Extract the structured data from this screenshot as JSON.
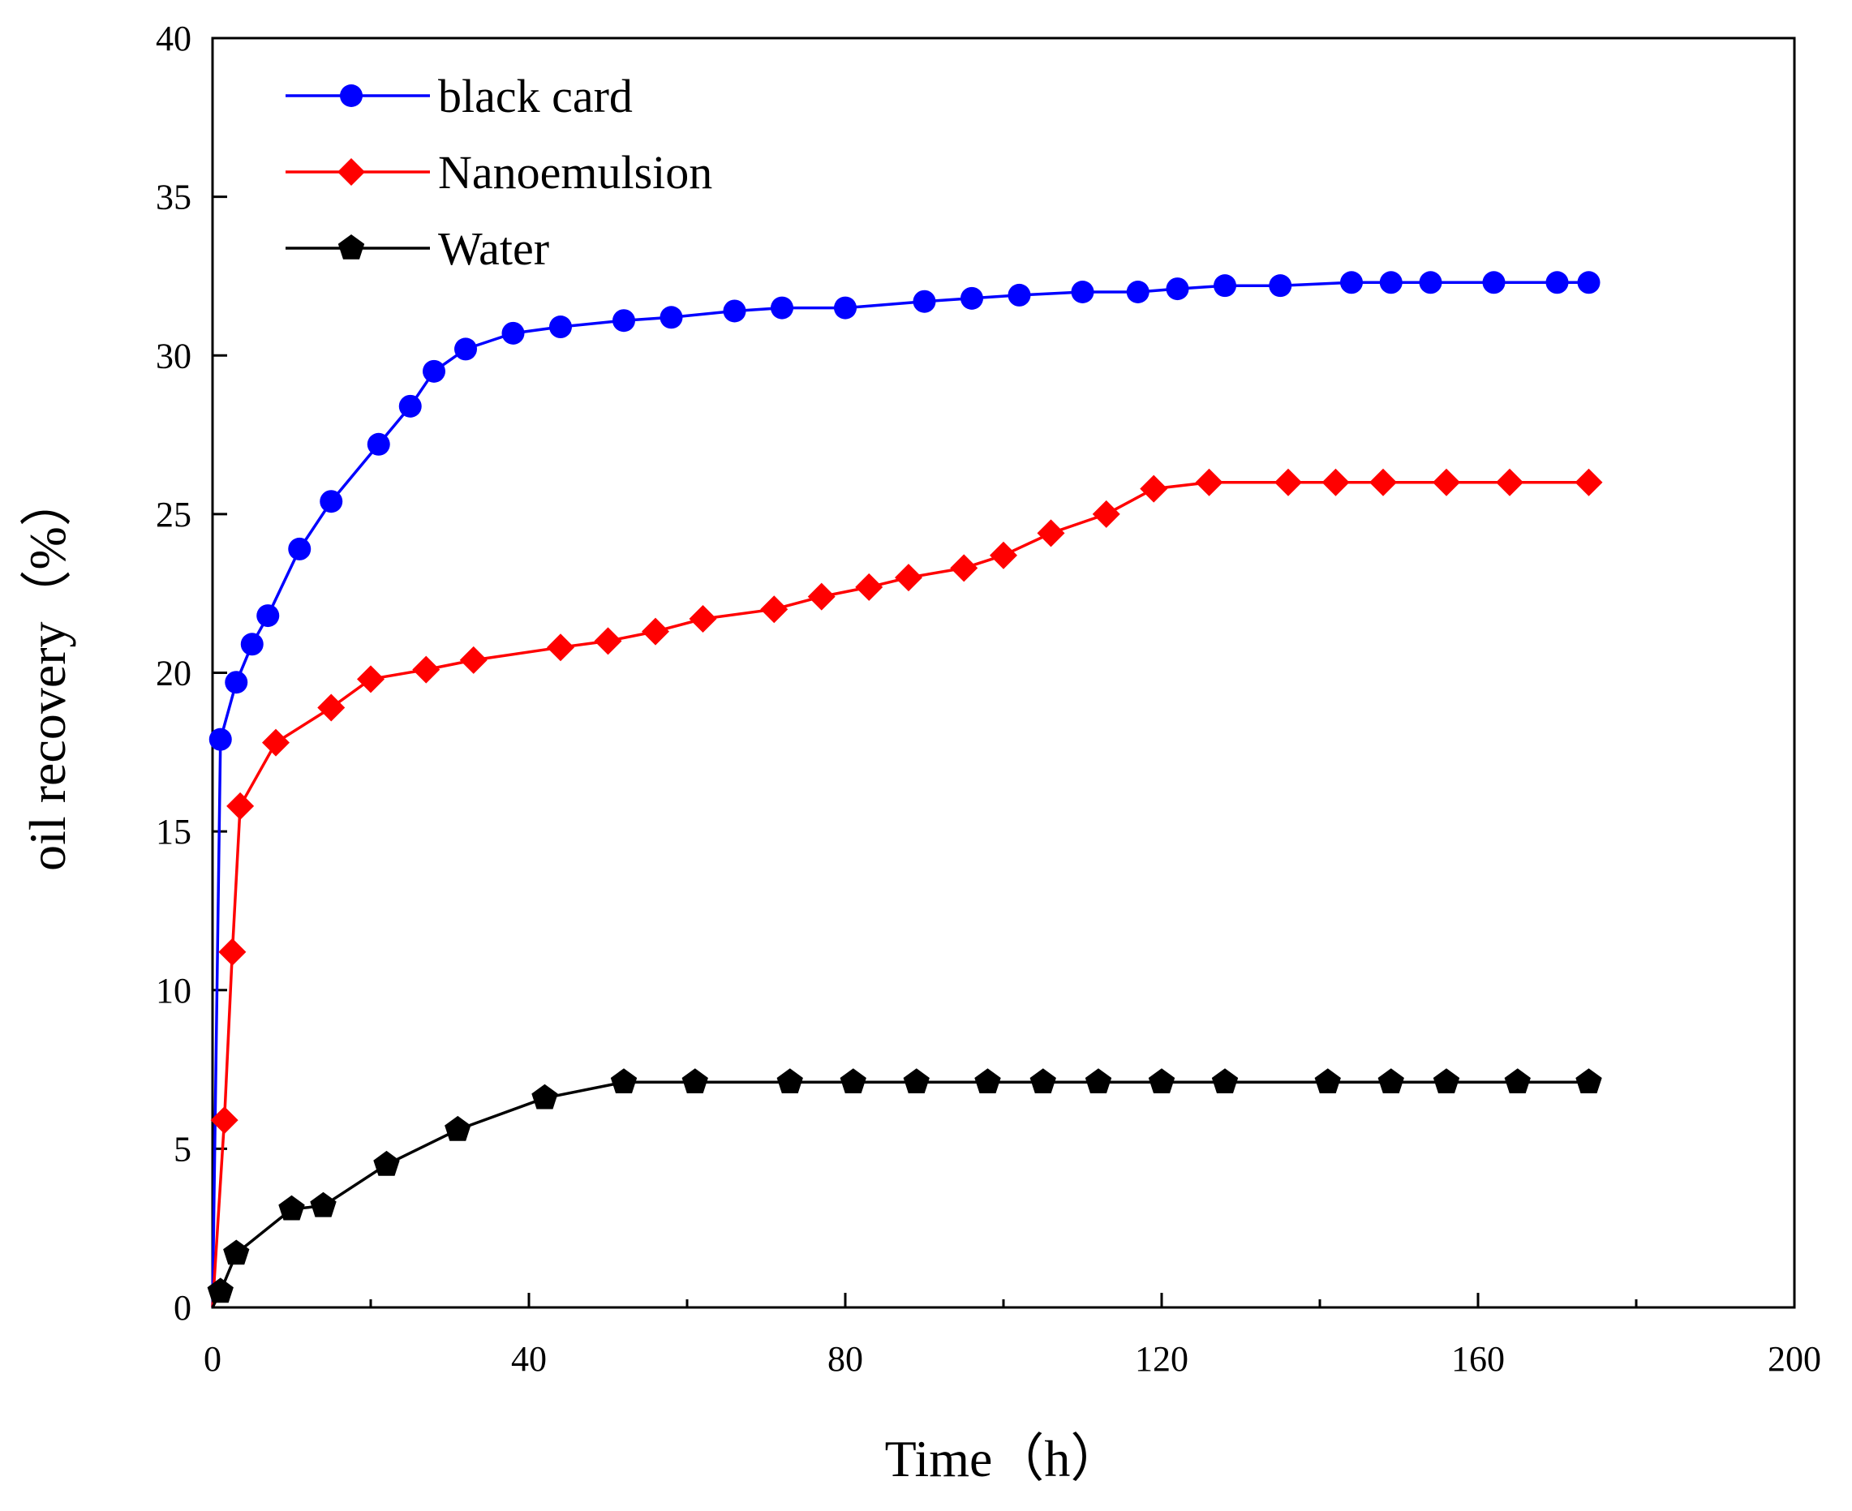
{
  "chart_data": {
    "type": "line",
    "title": "",
    "xlabel": "Time（h）",
    "ylabel": "oil recovery（%）",
    "xlim": [
      0,
      200
    ],
    "ylim": [
      0,
      40
    ],
    "xticks": [
      0,
      40,
      80,
      120,
      160,
      200
    ],
    "yticks": [
      0,
      5,
      10,
      15,
      20,
      25,
      30,
      35,
      40
    ],
    "x_minor_step": 20,
    "legend_position": "top-left",
    "series": [
      {
        "name": "black card",
        "color": "#0000ff",
        "marker": "circle",
        "x": [
          0,
          1,
          3,
          5,
          7,
          11,
          15,
          21,
          25,
          28,
          32,
          38,
          44,
          52,
          58,
          66,
          72,
          80,
          90,
          96,
          102,
          110,
          117,
          122,
          128,
          135,
          144,
          149,
          154,
          162,
          170,
          174
        ],
        "y": [
          0,
          17.9,
          19.7,
          20.9,
          21.8,
          23.9,
          25.4,
          27.2,
          28.4,
          29.5,
          30.2,
          30.7,
          30.9,
          31.1,
          31.2,
          31.4,
          31.5,
          31.5,
          31.7,
          31.8,
          31.9,
          32.0,
          32.0,
          32.1,
          32.2,
          32.2,
          32.3,
          32.3,
          32.3,
          32.3,
          32.3,
          32.3
        ]
      },
      {
        "name": "Nanoemulsion",
        "color": "#ff0000",
        "marker": "diamond",
        "x": [
          0,
          1.5,
          2.5,
          3.5,
          8,
          15,
          20,
          27,
          33,
          44,
          50,
          56,
          62,
          71,
          77,
          83,
          88,
          95,
          100,
          106,
          113,
          119,
          126,
          136,
          142,
          148,
          156,
          164,
          174
        ],
        "y": [
          0,
          5.9,
          11.2,
          15.8,
          17.8,
          18.9,
          19.8,
          20.1,
          20.4,
          20.8,
          21.0,
          21.3,
          21.7,
          22.0,
          22.4,
          22.7,
          23.0,
          23.3,
          23.7,
          24.4,
          25.0,
          25.8,
          26.0,
          26.0,
          26.0,
          26.0,
          26.0,
          26.0,
          26.0
        ]
      },
      {
        "name": "Water",
        "color": "#000000",
        "marker": "pentagon",
        "x": [
          0,
          1,
          3,
          10,
          14,
          22,
          31,
          42,
          52,
          61,
          73,
          81,
          89,
          98,
          105,
          112,
          120,
          128,
          141,
          149,
          156,
          165,
          174
        ],
        "y": [
          0,
          0.5,
          1.7,
          3.1,
          3.2,
          4.5,
          5.6,
          6.6,
          7.1,
          7.1,
          7.1,
          7.1,
          7.1,
          7.1,
          7.1,
          7.1,
          7.1,
          7.1,
          7.1,
          7.1,
          7.1,
          7.1,
          7.1
        ]
      }
    ]
  }
}
